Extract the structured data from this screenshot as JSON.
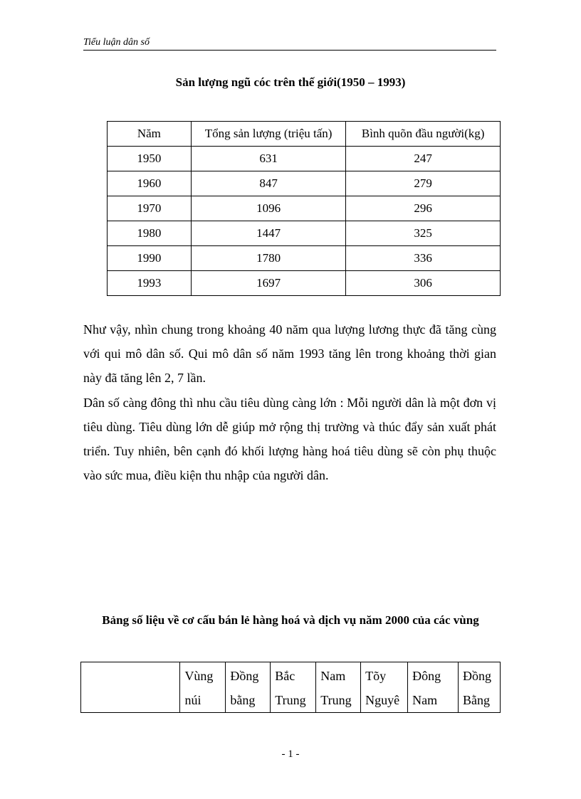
{
  "header": {
    "text": "Tiểu luận dân số"
  },
  "table1": {
    "title": "Sản lượng ngũ cóc trên thế giới(1950 – 1993)",
    "headers": [
      "Năm",
      "Tổng sản lượng (triệu tấn)",
      "Bình quõn đầu người(kg)"
    ],
    "rows": [
      [
        "1950",
        "631",
        "247"
      ],
      [
        "1960",
        "847",
        "279"
      ],
      [
        "1970",
        "1096",
        "296"
      ],
      [
        "1980",
        "1447",
        "325"
      ],
      [
        "1990",
        "1780",
        "336"
      ],
      [
        "1993",
        "1697",
        "306"
      ]
    ]
  },
  "paragraphs": [
    "Như vậy, nhìn chung trong khoảng 40 năm qua lượng lương thực đã tăng cùng với qui mô dân số. Qui mô dân số năm 1993 tăng lên trong khoảng thời gian này đã tăng lên 2, 7 lần.",
    "Dân số càng đông thì nhu cầu tiêu dùng càng lớn : Mỗi người dân là một đơn vị tiêu dùng. Tiêu dùng lớn dễ giúp mở rộng thị trường và thúc đẩy sản xuất phát triển. Tuy nhiên, bên cạnh đó khối lượng hàng hoá tiêu dùng sẽ còn phụ thuộc vào sức mua, điều kiện thu nhập của người dân."
  ],
  "table2": {
    "title": "Bảng số liệu về cơ cấu bán lẻ hàng hoá và dịch vụ năm 2000 của các vùng",
    "headers": [
      "",
      "Vùng núi",
      "Đồng bằng",
      "Bắc Trung",
      "Nam Trung",
      "Tõy Nguyê",
      "Đông Nam",
      "Đồng Bằng"
    ]
  },
  "footer": {
    "page_number": "- 1 -"
  }
}
